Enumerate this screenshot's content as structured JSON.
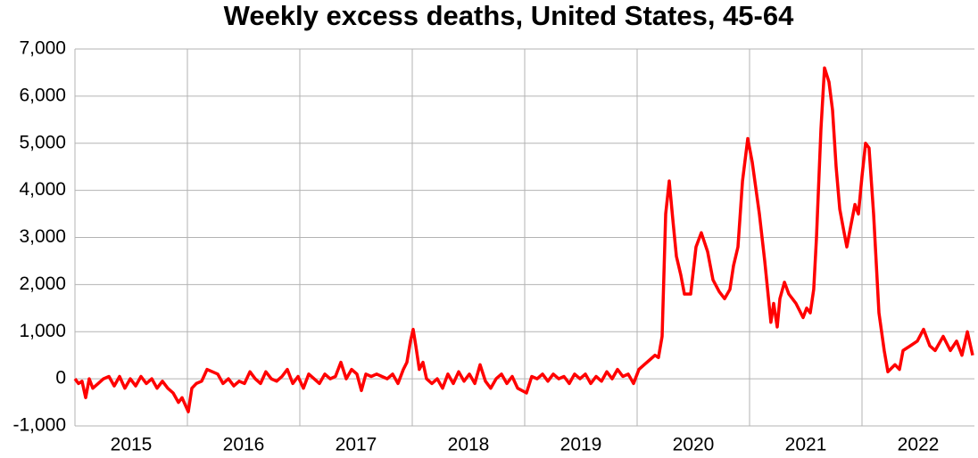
{
  "chart_data": {
    "type": "line",
    "title": "Weekly excess deaths, United States, 45-64",
    "xlim": [
      2015,
      2023
    ],
    "xticks": [
      {
        "value": 2015.5,
        "label": "2015"
      },
      {
        "value": 2016.5,
        "label": "2016"
      },
      {
        "value": 2017.5,
        "label": "2017"
      },
      {
        "value": 2018.5,
        "label": "2018"
      },
      {
        "value": 2019.5,
        "label": "2019"
      },
      {
        "value": 2020.5,
        "label": "2020"
      },
      {
        "value": 2021.5,
        "label": "2021"
      },
      {
        "value": 2022.5,
        "label": "2022"
      }
    ],
    "xgrid": [
      2016,
      2017,
      2018,
      2019,
      2020,
      2021,
      2022
    ],
    "ylim": [
      -1000,
      7000
    ],
    "yticks": [
      {
        "value": -1000,
        "label": "-1,000"
      },
      0,
      {
        "value": 1000,
        "label": "1,000"
      },
      {
        "value": 2000,
        "label": "2,000"
      },
      {
        "value": 3000,
        "label": "3,000"
      },
      {
        "value": 4000,
        "label": "4,000"
      },
      {
        "value": 5000,
        "label": "5,000"
      },
      {
        "value": 6000,
        "label": "6,000"
      },
      {
        "value": 7000,
        "label": "7,000"
      }
    ],
    "grid": true,
    "series": [
      {
        "color": "#ff0000",
        "x": [
          2015.0,
          2015.032,
          2015.063,
          2015.095,
          2015.127,
          2015.159,
          2015.206,
          2015.254,
          2015.302,
          2015.349,
          2015.397,
          2015.444,
          2015.492,
          2015.54,
          2015.587,
          2015.635,
          2015.683,
          2015.73,
          2015.778,
          2015.825,
          2015.873,
          2015.921,
          2015.952,
          2016.008,
          2016.04,
          2016.079,
          2016.127,
          2016.175,
          2016.222,
          2016.27,
          2016.317,
          2016.365,
          2016.413,
          2016.46,
          2016.508,
          2016.556,
          2016.603,
          2016.651,
          2016.698,
          2016.746,
          2016.794,
          2016.841,
          2016.889,
          2016.937,
          2016.984,
          2017.032,
          2017.079,
          2017.127,
          2017.175,
          2017.222,
          2017.27,
          2017.317,
          2017.365,
          2017.413,
          2017.46,
          2017.508,
          2017.548,
          2017.587,
          2017.635,
          2017.683,
          2017.73,
          2017.778,
          2017.825,
          2017.873,
          2017.921,
          2017.952,
          2017.984,
          2018.008,
          2018.032,
          2018.063,
          2018.095,
          2018.127,
          2018.175,
          2018.222,
          2018.27,
          2018.317,
          2018.365,
          2018.413,
          2018.46,
          2018.508,
          2018.556,
          2018.603,
          2018.651,
          2018.698,
          2018.746,
          2018.794,
          2018.841,
          2018.889,
          2018.937,
          2019.016,
          2019.063,
          2019.111,
          2019.159,
          2019.206,
          2019.254,
          2019.302,
          2019.349,
          2019.397,
          2019.444,
          2019.492,
          2019.54,
          2019.587,
          2019.635,
          2019.683,
          2019.73,
          2019.778,
          2019.825,
          2019.873,
          2019.921,
          2019.968,
          2020.016,
          2020.063,
          2020.111,
          2020.159,
          2020.19,
          2020.222,
          2020.254,
          2020.286,
          2020.317,
          2020.349,
          2020.389,
          2020.421,
          2020.476,
          2020.524,
          2020.571,
          2020.627,
          2020.675,
          2020.73,
          2020.778,
          2020.825,
          2020.857,
          2020.897,
          2020.937,
          2020.984,
          2021.024,
          2021.087,
          2021.135,
          2021.19,
          2021.214,
          2021.246,
          2021.27,
          2021.31,
          2021.349,
          2021.413,
          2021.476,
          2021.508,
          2021.54,
          2021.571,
          2021.595,
          2021.635,
          2021.667,
          2021.706,
          2021.738,
          2021.77,
          2021.802,
          2021.833,
          2021.865,
          2021.897,
          2021.937,
          2021.968,
          2022.0,
          2022.032,
          2022.063,
          2022.103,
          2022.151,
          2022.198,
          2022.23,
          2022.294,
          2022.333,
          2022.365,
          2022.429,
          2022.492,
          2022.548,
          2022.603,
          2022.651,
          2022.722,
          2022.786,
          2022.841,
          2022.889,
          2022.937,
          2022.984
        ],
        "values": [
          0,
          -100,
          -50,
          -400,
          0,
          -200,
          -100,
          0,
          50,
          -150,
          50,
          -200,
          0,
          -150,
          50,
          -100,
          0,
          -200,
          -50,
          -200,
          -300,
          -500,
          -400,
          -700,
          -200,
          -100,
          -50,
          200,
          150,
          100,
          -100,
          0,
          -150,
          -50,
          -100,
          150,
          0,
          -100,
          150,
          0,
          -50,
          50,
          200,
          -100,
          50,
          -200,
          100,
          0,
          -100,
          100,
          0,
          50,
          350,
          0,
          200,
          100,
          -250,
          100,
          50,
          100,
          50,
          0,
          100,
          -100,
          200,
          350,
          800,
          1050,
          700,
          200,
          350,
          0,
          -100,
          0,
          -200,
          100,
          -100,
          150,
          -50,
          100,
          -100,
          300,
          -50,
          -200,
          0,
          100,
          -100,
          50,
          -200,
          -300,
          50,
          0,
          100,
          -50,
          100,
          0,
          50,
          -100,
          100,
          0,
          100,
          -100,
          50,
          -50,
          150,
          0,
          200,
          50,
          100,
          -100,
          200,
          300,
          400,
          500,
          450,
          900,
          3500,
          4200,
          3400,
          2600,
          2200,
          1800,
          1800,
          2800,
          3100,
          2700,
          2100,
          1850,
          1700,
          1900,
          2400,
          2800,
          4200,
          5100,
          4600,
          3500,
          2500,
          1200,
          1600,
          1100,
          1700,
          2050,
          1800,
          1600,
          1300,
          1500,
          1400,
          1900,
          3000,
          5300,
          6600,
          6300,
          5700,
          4500,
          3600,
          3200,
          2800,
          3200,
          3700,
          3500,
          4300,
          5000,
          4900,
          3500,
          1400,
          600,
          150,
          300,
          200,
          600,
          700,
          800,
          1050,
          700,
          600,
          900,
          600,
          800,
          500,
          1000,
          500
        ]
      }
    ]
  }
}
